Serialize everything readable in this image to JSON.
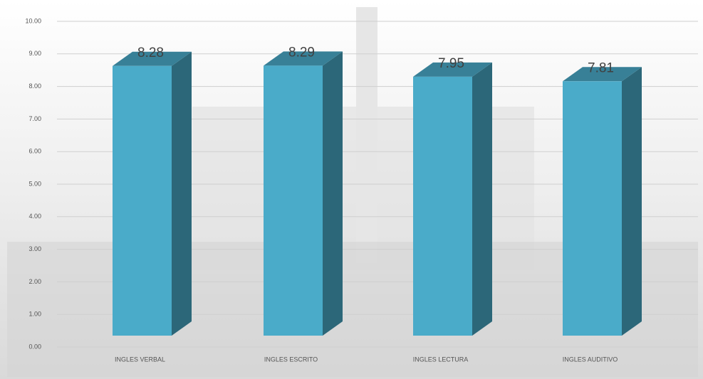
{
  "chart_data": {
    "type": "bar3d",
    "categories": [
      "INGLES VERBAL",
      "INGLES ESCRITO",
      "INGLES LECTURA",
      "INGLES AUDITIVO"
    ],
    "values": [
      8.28,
      8.29,
      7.95,
      7.81
    ],
    "color": "#4aabc9",
    "ylim": [
      0,
      10
    ],
    "yticks": [
      {
        "value": 0,
        "label": "0.00"
      },
      {
        "value": 1,
        "label": "1.00"
      },
      {
        "value": 2,
        "label": "2.00"
      },
      {
        "value": 3,
        "label": "3.00"
      },
      {
        "value": 4,
        "label": "4.00"
      },
      {
        "value": 5,
        "label": "5.00"
      },
      {
        "value": 6,
        "label": "6.00"
      },
      {
        "value": 7,
        "label": "7.00"
      },
      {
        "value": 8,
        "label": "8.00"
      },
      {
        "value": 9,
        "label": "9.00"
      },
      {
        "value": 10,
        "label": "10.00"
      }
    ],
    "grid": true
  }
}
